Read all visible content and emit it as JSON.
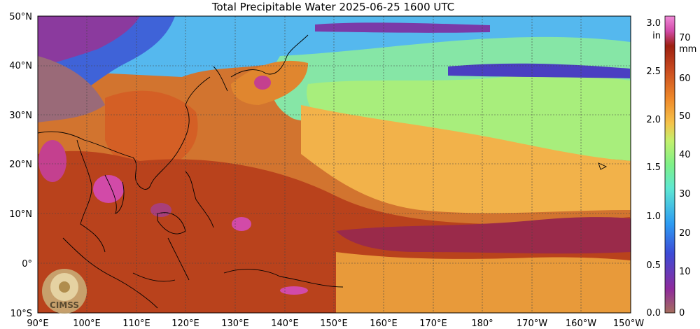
{
  "title": "Total Precipitable Water  2025-06-25 1600 UTC",
  "map": {
    "lat_ticks": [
      "50°N",
      "40°N",
      "30°N",
      "20°N",
      "10°N",
      "0°",
      "10°S"
    ],
    "lon_ticks": [
      "90°E",
      "100°E",
      "110°E",
      "120°E",
      "130°E",
      "140°E",
      "150°E",
      "160°E",
      "170°E",
      "180°",
      "170°W",
      "160°W",
      "150°W"
    ],
    "lat_range": [
      -10,
      50
    ],
    "lon_range": [
      90,
      210
    ]
  },
  "logo": {
    "text": "CIMSS"
  },
  "colorbar": {
    "unit_in": "in",
    "unit_mm": "mm",
    "in_ticks": [
      "3.0",
      "2.5",
      "2.0",
      "1.5",
      "1.0",
      "0.5",
      "0.0"
    ],
    "mm_ticks": [
      "70",
      "60",
      "50",
      "40",
      "30",
      "20",
      "10",
      "0"
    ],
    "colors": [
      "#a56e5d",
      "#8f2b9c",
      "#3d4bd6",
      "#2d9bf2",
      "#5ee8d2",
      "#7ef087",
      "#c3f06d",
      "#f5c24a",
      "#ef8a2a",
      "#c84a1f",
      "#9c1f10",
      "#d24aa8",
      "#f08ad8"
    ]
  }
}
